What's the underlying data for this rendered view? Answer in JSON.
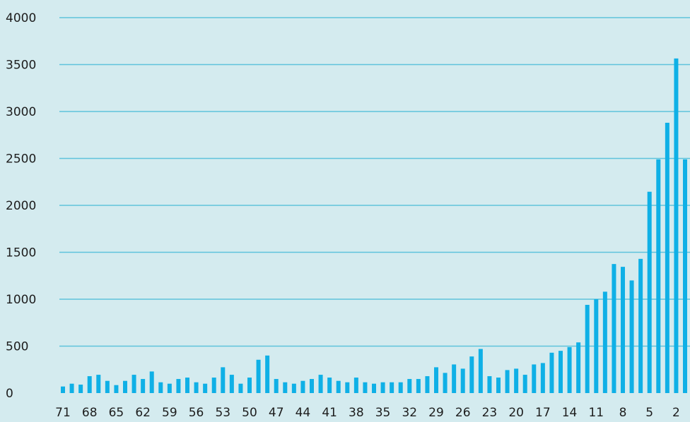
{
  "colors": {
    "background": "#d4ebef",
    "bar": "#0fb0e6",
    "gridline": "#5fc3dc",
    "text": "#1d1d1d"
  },
  "chart_data": {
    "type": "bar",
    "title": "",
    "xlabel": "",
    "ylabel": "",
    "ylim": [
      0,
      4000
    ],
    "yticks": [
      0,
      500,
      1000,
      1500,
      2000,
      2500,
      3000,
      3500,
      4000
    ],
    "grid": true,
    "legend": "none",
    "x_tick_labels": [
      "71",
      "68",
      "65",
      "62",
      "59",
      "56",
      "53",
      "50",
      "47",
      "44",
      "41",
      "38",
      "35",
      "32",
      "29",
      "26",
      "23",
      "20",
      "17",
      "14",
      "11",
      "8",
      "5",
      "2"
    ],
    "categories": [
      "71",
      "70",
      "69",
      "68",
      "67",
      "66",
      "65",
      "64",
      "63",
      "62",
      "61",
      "60",
      "59",
      "58",
      "57",
      "56",
      "55",
      "54",
      "53",
      "52",
      "51",
      "50",
      "49",
      "48",
      "47",
      "46",
      "45",
      "44",
      "43",
      "42",
      "41",
      "40",
      "39",
      "38",
      "37",
      "36",
      "35",
      "34",
      "33",
      "32",
      "31",
      "30",
      "29",
      "28",
      "27",
      "26",
      "25",
      "24",
      "23",
      "22",
      "21",
      "20",
      "19",
      "18",
      "17",
      "16",
      "15",
      "14",
      "13",
      "12",
      "11",
      "10",
      "9",
      "8",
      "7",
      "6",
      "5",
      "4",
      "3",
      "2",
      "1"
    ],
    "values": [
      70,
      100,
      90,
      180,
      195,
      130,
      85,
      130,
      195,
      150,
      230,
      115,
      100,
      150,
      165,
      115,
      100,
      165,
      275,
      195,
      100,
      165,
      355,
      400,
      150,
      115,
      100,
      130,
      150,
      195,
      165,
      130,
      115,
      165,
      115,
      100,
      115,
      115,
      115,
      150,
      150,
      180,
      275,
      215,
      305,
      260,
      390,
      470,
      180,
      165,
      245,
      260,
      195,
      305,
      320,
      430,
      450,
      490,
      540,
      940,
      1000,
      1080,
      1375,
      1345,
      1200,
      1430,
      2145,
      2490,
      2880,
      3565,
      2490
    ]
  }
}
